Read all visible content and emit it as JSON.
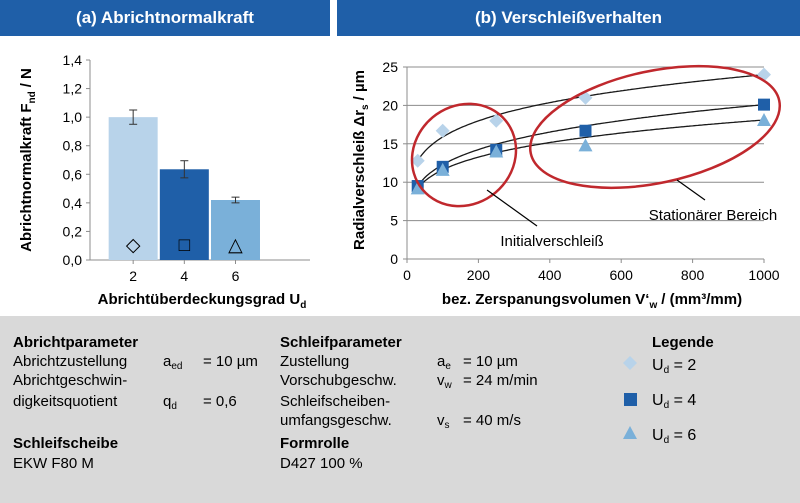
{
  "chart_data": [
    {
      "type": "bar",
      "title": "(a) Abrichtnormalkraft",
      "ylabel": "Abrichtnormalkraft F",
      "ylabel_sub": "nd",
      "ylabel_unit": "/ N",
      "xlabel": "Abrichtüberdeckungsgrad U",
      "xlabel_sub": "d",
      "categories": [
        "2",
        "4",
        "6"
      ],
      "values": [
        1.0,
        0.635,
        0.42
      ],
      "errors": [
        0.05,
        0.06,
        0.02
      ],
      "colors": [
        "#b8d3ea",
        "#1f5fa8",
        "#7ab0d9"
      ],
      "markers": [
        "◇",
        "□",
        "△"
      ],
      "ylim": [
        0,
        1.4
      ],
      "yticks": [
        "0,0",
        "0,2",
        "0,4",
        "0,6",
        "0,8",
        "1,0",
        "1,2",
        "1,4"
      ],
      "grid": false
    },
    {
      "type": "scatter",
      "title": "(b) Verschleißverhalten",
      "ylabel": "Radialverschleiß Δr",
      "ylabel_sub": "s",
      "ylabel_unit": "/ µm",
      "xlabel": "bez. Zerspanungsvolumen V‘",
      "xlabel_sub": "w",
      "xlabel_unit": "/ (mm³/mm)",
      "xlim": [
        0,
        1000
      ],
      "ylim": [
        0,
        25
      ],
      "xticks": [
        "0",
        "200",
        "400",
        "600",
        "800",
        "1000"
      ],
      "yticks": [
        "0",
        "5",
        "10",
        "15",
        "20",
        "25"
      ],
      "grid": true,
      "series": [
        {
          "name": "U_d = 2",
          "marker": "diamond",
          "color": "#b8d3ea",
          "x": [
            30,
            100,
            250,
            500,
            1000
          ],
          "y": [
            12.8,
            16.7,
            18.0,
            21.0,
            24.0
          ]
        },
        {
          "name": "U_d = 4",
          "marker": "square",
          "color": "#1f5fa8",
          "x": [
            30,
            100,
            250,
            500,
            1000
          ],
          "y": [
            9.5,
            12.0,
            14.2,
            16.7,
            20.1
          ]
        },
        {
          "name": "U_d = 6",
          "marker": "triangle",
          "color": "#7ab0d9",
          "x": [
            30,
            100,
            250,
            500,
            1000
          ],
          "y": [
            9.2,
            11.6,
            14.0,
            14.8,
            18.1
          ]
        }
      ],
      "annotations": [
        "Stationärer Bereich",
        "Initialverschleiß"
      ]
    }
  ],
  "params": {
    "abricht": {
      "heading": "Abrichtparameter",
      "row1_label": "Abrichtzustellung",
      "row1_sym": "a",
      "row1_sub": "ed",
      "row1_val": "= 10 µm",
      "row2_label": "Abrichtgeschwin-",
      "row3_label": "digkeitsquotient",
      "row3_sym": "q",
      "row3_sub": "d",
      "row3_val": "= 0,6"
    },
    "schleifscheibe": {
      "heading": "Schleifscheibe",
      "value": "EKW F80 M"
    },
    "schleif": {
      "heading": "Schleifparameter",
      "row1_label": "Zustellung",
      "row1_sym": "a",
      "row1_sub": "e",
      "row1_val": "= 10 µm",
      "row2_label": "Vorschubgeschw.",
      "row2_sym": "v",
      "row2_sub": "w",
      "row2_val": "= 24 m/min",
      "row3_label": "Schleifscheiben-",
      "row4_label": "umfangsgeschw.",
      "row4_sym": "v",
      "row4_sub": "s",
      "row4_val": "= 40 m/s"
    },
    "formrolle": {
      "heading": "Formrolle",
      "value": "D427 100 %"
    },
    "legende": {
      "heading": "Legende",
      "sym": "U",
      "sub": "d",
      "items": [
        "= 2",
        "= 4",
        "= 6"
      ]
    }
  }
}
